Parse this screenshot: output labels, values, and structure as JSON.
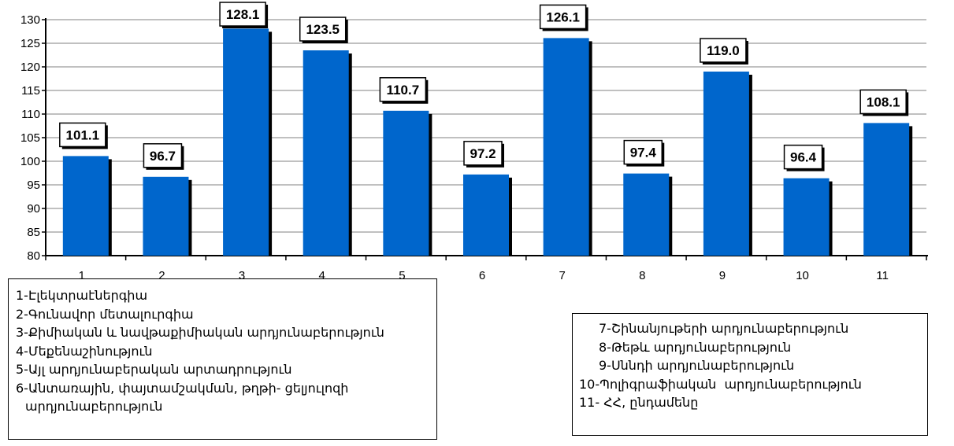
{
  "chart_data": {
    "type": "bar",
    "categories": [
      "1",
      "2",
      "3",
      "4",
      "5",
      "6",
      "7",
      "8",
      "9",
      "10",
      "11"
    ],
    "values": [
      101.1,
      96.7,
      128.1,
      123.5,
      110.7,
      97.2,
      126.1,
      97.4,
      119.0,
      96.4,
      108.1
    ],
    "data_labels": [
      "101.1",
      "96.7",
      "128.1",
      "123.5",
      "110.7",
      "97.2",
      "126.1",
      "97.4",
      "119.0",
      "96.4",
      "108.1"
    ],
    "ylim": [
      80,
      130
    ],
    "yticks": [
      80,
      85,
      90,
      95,
      100,
      105,
      110,
      115,
      120,
      125,
      130
    ],
    "grid": true,
    "bar_color": "#0066cc",
    "shadow_color": "#000000",
    "title": "",
    "xlabel": "",
    "ylabel": ""
  },
  "legend": {
    "left": [
      "1-Էլեկտրաէներգիա",
      "2-Գունավոր մետալուրգիա",
      "3-Քիմիական և նավթաքիմիական արդյունաբերություն",
      "4-Մեքենաշինություն",
      "5-Այլ արդյունաբերական արտադրություն",
      "6-Անտառային, փայտամշակման, թղթի- ցելյուլոզի",
      "արդյունաբերություն"
    ],
    "right": [
      "7-Շինանյութերի արդյունաբերություն",
      "8-Թեթև արդյունաբերություն",
      "9-Սննդի արդյունաբերություն",
      "10-Պոլիգրաֆիական  արդյունաբերություն",
      "11- ՀՀ, ընդամենը"
    ]
  }
}
